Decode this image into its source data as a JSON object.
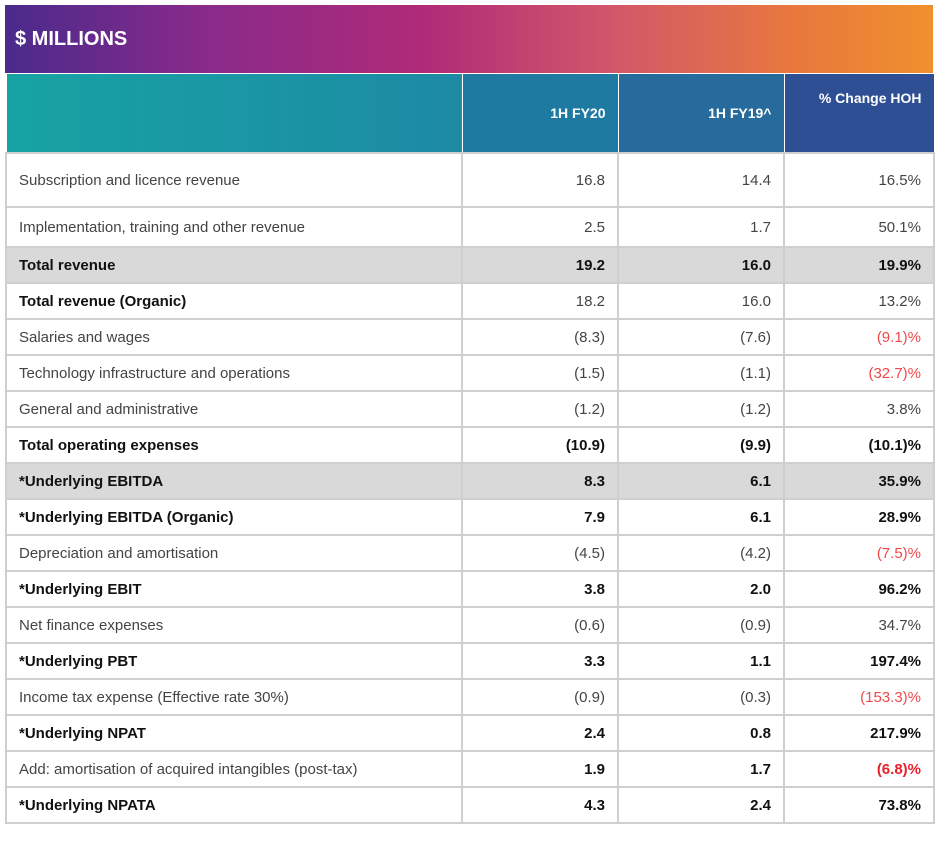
{
  "title": "$ MILLIONS",
  "columns": [
    "",
    "1H FY20",
    "1H FY19^",
    "% Change HOH"
  ],
  "rows": [
    {
      "label": "Subscription and licence revenue",
      "fy20": "16.8",
      "fy19": "14.4",
      "change": "16.5%",
      "bold": false,
      "shaded": false,
      "negative": false
    },
    {
      "label": "Implementation, training and other revenue",
      "fy20": "2.5",
      "fy19": "1.7",
      "change": "50.1%",
      "bold": false,
      "shaded": false,
      "negative": false
    },
    {
      "label": "Total revenue",
      "fy20": "19.2",
      "fy19": "16.0",
      "change": "19.9%",
      "bold": true,
      "shaded": true,
      "negative": false
    },
    {
      "label": "Total revenue (Organic)",
      "fy20": "18.2",
      "fy19": "16.0",
      "change": "13.2%",
      "bold": "label",
      "shaded": false,
      "negative": false
    },
    {
      "label": "Salaries and wages",
      "fy20": "(8.3)",
      "fy19": "(7.6)",
      "change": "(9.1)%",
      "bold": false,
      "shaded": false,
      "negative": true
    },
    {
      "label": "Technology infrastructure and operations",
      "fy20": "(1.5)",
      "fy19": "(1.1)",
      "change": "(32.7)%",
      "bold": false,
      "shaded": false,
      "negative": true
    },
    {
      "label": "General and administrative",
      "fy20": "(1.2)",
      "fy19": "(1.2)",
      "change": "3.8%",
      "bold": false,
      "shaded": false,
      "negative": false
    },
    {
      "label": "Total operating expenses",
      "fy20": "(10.9)",
      "fy19": "(9.9)",
      "change": "(10.1)%",
      "bold": true,
      "shaded": false,
      "negative": true
    },
    {
      "label": "*Underlying EBITDA",
      "fy20": "8.3",
      "fy19": "6.1",
      "change": "35.9%",
      "bold": true,
      "shaded": true,
      "negative": false
    },
    {
      "label": "*Underlying EBITDA (Organic)",
      "fy20": "7.9",
      "fy19": "6.1",
      "change": "28.9%",
      "bold": true,
      "shaded": false,
      "negative": false
    },
    {
      "label": "Depreciation and amortisation",
      "fy20": "(4.5)",
      "fy19": "(4.2)",
      "change": "(7.5)%",
      "bold": false,
      "shaded": false,
      "negative": true
    },
    {
      "label": "*Underlying EBIT",
      "fy20": "3.8",
      "fy19": "2.0",
      "change": "96.2%",
      "bold": true,
      "shaded": false,
      "negative": false
    },
    {
      "label": "Net finance expenses",
      "fy20": "(0.6)",
      "fy19": "(0.9)",
      "change": "34.7%",
      "bold": false,
      "shaded": false,
      "negative": false
    },
    {
      "label": "*Underlying PBT",
      "fy20": "3.3",
      "fy19": "1.1",
      "change": "197.4%",
      "bold": true,
      "shaded": false,
      "negative": false
    },
    {
      "label": "Income tax expense (Effective rate 30%)",
      "fy20": "(0.9)",
      "fy19": "(0.3)",
      "change": "(153.3)%",
      "bold": false,
      "shaded": false,
      "negative": true
    },
    {
      "label": "*Underlying NPAT",
      "fy20": "2.4",
      "fy19": "0.8",
      "change": "217.9%",
      "bold": true,
      "shaded": false,
      "negative": false
    },
    {
      "label": "Add: amortisation of acquired intangibles (post-tax)",
      "fy20": "1.9",
      "fy19": "1.7",
      "change": "(6.8)%",
      "bold": "values",
      "shaded": false,
      "negative": true
    },
    {
      "label": "*Underlying NPATA",
      "fy20": "4.3",
      "fy19": "2.4",
      "change": "73.8%",
      "bold": true,
      "shaded": false,
      "negative": false
    }
  ],
  "colors": {
    "negative": "#e8202a",
    "shade": "#d9d9d9",
    "header_teal": "#1a9aa4",
    "header_navy": "#2e4f94"
  }
}
